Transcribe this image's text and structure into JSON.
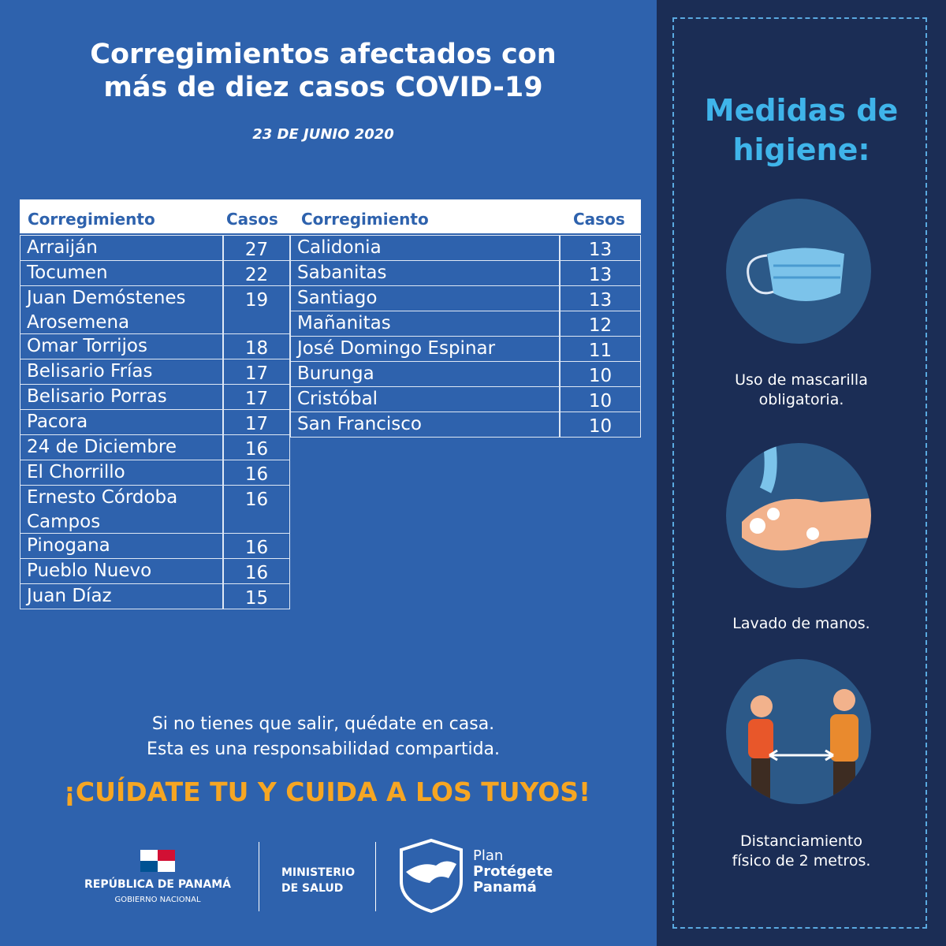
{
  "header": {
    "title_lines": [
      "Corregimientos afectados con",
      "más de diez casos COVID-19"
    ],
    "date": "23 DE JUNIO 2020"
  },
  "table": {
    "columns": [
      "Corregimiento",
      "Casos"
    ],
    "left_rows": [
      [
        "Arraiján",
        27
      ],
      [
        "Tocumen",
        22
      ],
      [
        "Juan Demóstenes Arosemena",
        19
      ],
      [
        "Omar Torrijos",
        18
      ],
      [
        "Belisario Frías",
        17
      ],
      [
        "Belisario Porras",
        17
      ],
      [
        "Pacora",
        17
      ],
      [
        "24 de Diciembre",
        16
      ],
      [
        "El Chorrillo",
        16
      ],
      [
        "Ernesto Córdoba Campos",
        16
      ],
      [
        "Pinogana",
        16
      ],
      [
        "Pueblo Nuevo",
        16
      ],
      [
        "Juan Díaz",
        15
      ]
    ],
    "right_rows": [
      [
        "Calidonia",
        13
      ],
      [
        "Sabanitas",
        13
      ],
      [
        "Santiago",
        13
      ],
      [
        "Mañanitas",
        12
      ],
      [
        "José Domingo Espinar",
        11
      ],
      [
        "Burunga",
        10
      ],
      [
        "Cristóbal",
        10
      ],
      [
        "San Francisco",
        10
      ]
    ]
  },
  "footer": {
    "message_lines": [
      "Si no tienes que salir, quédate en casa.",
      "Esta es una responsabilidad compartida."
    ],
    "slogan": "¡CUÍDATE TU Y CUIDA A LOS TUYOS!",
    "logos": {
      "country": "REPÚBLICA DE PANAMÁ",
      "government": "GOBIERNO NACIONAL",
      "ministry_lines": [
        "MINISTERIO",
        "DE SALUD"
      ],
      "plan_lines": [
        "Plan",
        "Protégete",
        "Panamá"
      ]
    }
  },
  "hygiene": {
    "title_lines": [
      "Medidas de",
      "higiene:"
    ],
    "items": [
      {
        "lines": [
          "Uso de mascarilla",
          "obligatoria."
        ]
      },
      {
        "lines": [
          "Lavado de manos."
        ]
      },
      {
        "lines": [
          "Distanciamiento",
          "físico de 2 metros."
        ]
      }
    ]
  }
}
